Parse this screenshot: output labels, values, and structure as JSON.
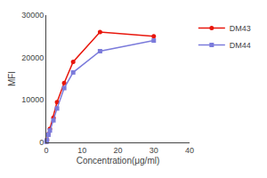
{
  "chart_data": {
    "type": "line",
    "xlabel": "Concentration(μg/ml)",
    "ylabel": "MFI",
    "x": [
      0.06,
      0.19,
      0.6,
      1.0,
      2.0,
      3.0,
      5.0,
      7.5,
      15.0,
      30.0
    ],
    "series": [
      {
        "name": "DM43",
        "color": "#e8160c",
        "marker": "circle",
        "values": [
          200,
          600,
          2000,
          3200,
          5800,
          9500,
          14000,
          19000,
          26000,
          25000
        ]
      },
      {
        "name": "DM44",
        "color": "#7b7bdb",
        "marker": "square",
        "values": [
          150,
          500,
          1800,
          2800,
          5200,
          8000,
          12800,
          16500,
          21500,
          24000
        ]
      }
    ],
    "xlim": [
      0,
      40
    ],
    "ylim": [
      0,
      30000
    ],
    "xticks": [
      0,
      10,
      20,
      30,
      40
    ],
    "yticks": [
      0,
      10000,
      20000,
      30000
    ],
    "grid": false,
    "legend": "right"
  }
}
